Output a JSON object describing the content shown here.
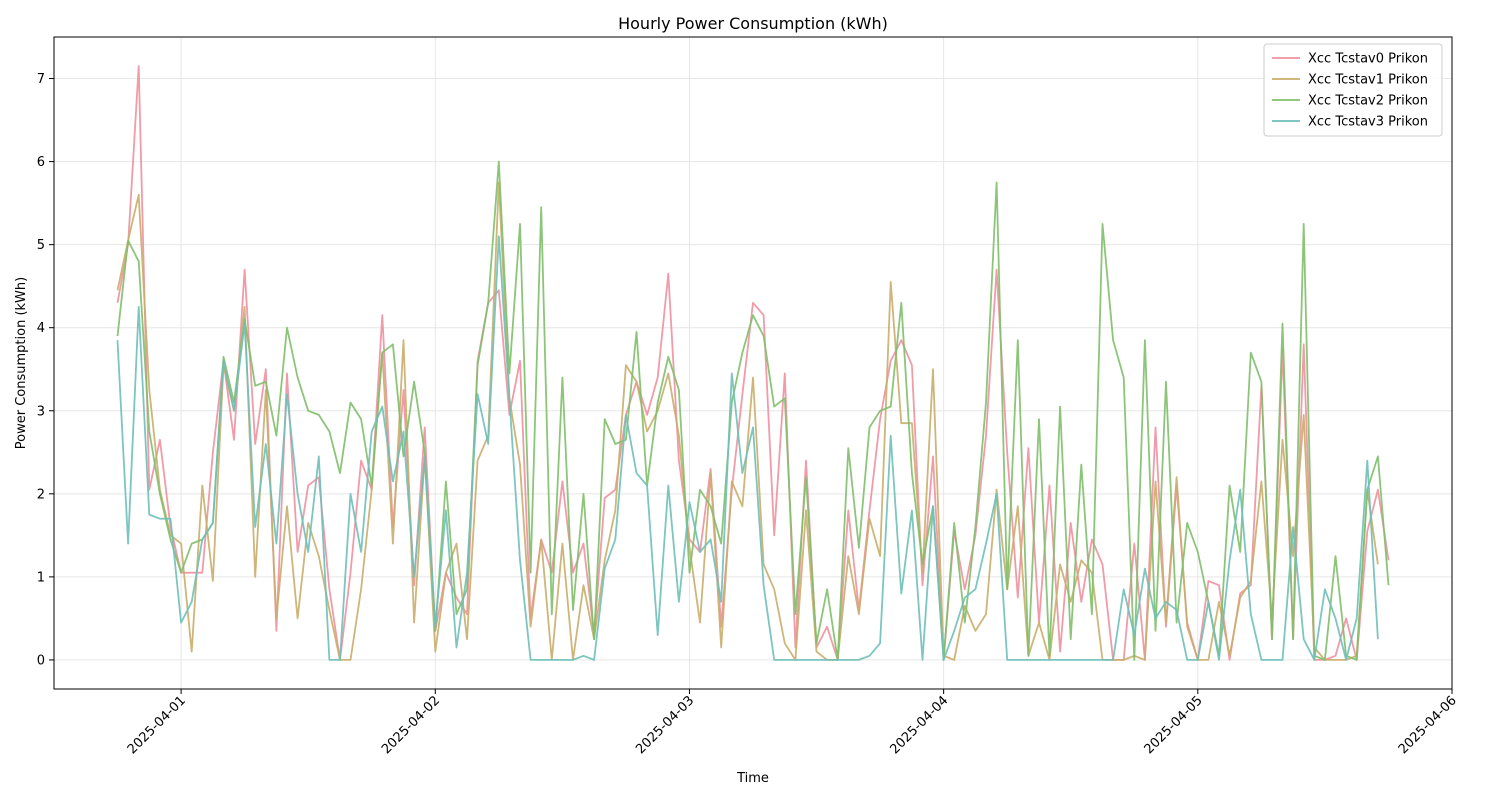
{
  "chart_data": {
    "type": "line",
    "title": "Hourly Power Consumption (kWh)",
    "xlabel": "Time",
    "ylabel": "Power Consumption (kWh)",
    "x_start": "2025-03-31 18:00",
    "x_step_hours": 1,
    "xlim": [
      "2025-03-31 12:00",
      "2025-04-06 00:00"
    ],
    "ylim": [
      -0.35,
      7.5
    ],
    "x_ticks": [
      "2025-04-01",
      "2025-04-02",
      "2025-04-03",
      "2025-04-04",
      "2025-04-05",
      "2025-04-06"
    ],
    "y_ticks": [
      0,
      1,
      2,
      3,
      4,
      5,
      6,
      7
    ],
    "grid": true,
    "legend_position": "top-right",
    "series": [
      {
        "name": "Xcc Tcstav0 Prikon",
        "color": "#f0909f",
        "values": [
          4.3,
          5.0,
          7.15,
          2.05,
          2.65,
          1.6,
          1.05,
          1.05,
          1.05,
          2.5,
          3.6,
          2.65,
          4.7,
          2.6,
          3.5,
          0.35,
          3.45,
          1.3,
          2.1,
          2.2,
          0.85,
          0.0,
          1.05,
          2.4,
          2.05,
          4.15,
          1.6,
          3.25,
          0.9,
          2.8,
          0.35,
          1.05,
          0.75,
          0.55,
          3.6,
          4.3,
          4.45,
          2.95,
          3.6,
          0.5,
          1.45,
          1.05,
          2.15,
          1.05,
          1.4,
          0.3,
          1.95,
          2.05,
          2.95,
          3.35,
          2.95,
          3.4,
          4.65,
          2.4,
          1.45,
          1.3,
          2.3,
          0.4,
          2.05,
          3.2,
          4.3,
          4.15,
          1.5,
          3.45,
          0.15,
          2.4,
          0.15,
          0.4,
          0.0,
          1.8,
          0.6,
          1.8,
          2.9,
          3.6,
          3.85,
          3.55,
          0.9,
          2.45,
          0.0,
          1.55,
          0.85,
          1.5,
          2.7,
          4.7,
          2.5,
          0.75,
          2.55,
          0.45,
          2.1,
          0.1,
          1.65,
          0.7,
          1.45,
          1.15,
          0.0,
          0.0,
          1.4,
          0.0,
          2.8,
          0.4,
          2.1,
          0.45,
          0.0,
          0.95,
          0.9,
          0.0,
          0.8,
          0.9,
          3.3,
          0.25,
          3.75,
          0.25,
          3.8,
          0.0,
          0.0,
          0.05,
          0.5,
          0.0,
          1.55,
          2.05,
          1.2
        ]
      },
      {
        "name": "Xcc Tcstav1 Prikon",
        "color": "#c9ad6a",
        "values": [
          4.45,
          5.05,
          5.6,
          3.25,
          2.05,
          1.5,
          1.4,
          0.1,
          2.1,
          0.95,
          3.55,
          3.0,
          4.25,
          1.0,
          3.25,
          0.5,
          1.85,
          0.5,
          1.65,
          1.25,
          0.6,
          0.0,
          0.0,
          0.85,
          2.05,
          3.7,
          1.4,
          3.85,
          0.45,
          2.45,
          0.1,
          1.05,
          1.4,
          0.25,
          2.4,
          2.7,
          5.75,
          3.15,
          2.35,
          0.4,
          1.45,
          0.0,
          1.4,
          0.0,
          0.9,
          0.25,
          1.2,
          1.8,
          3.55,
          3.35,
          2.75,
          3.0,
          3.45,
          2.7,
          1.35,
          0.45,
          2.25,
          0.15,
          2.15,
          1.85,
          3.4,
          1.15,
          0.85,
          0.2,
          0.0,
          1.8,
          0.1,
          0.0,
          0.0,
          1.25,
          0.55,
          1.7,
          1.25,
          4.55,
          2.85,
          2.85,
          1.05,
          3.5,
          0.05,
          0.0,
          0.65,
          0.35,
          0.55,
          2.05,
          0.85,
          1.85,
          0.05,
          0.45,
          0.0,
          1.15,
          0.7,
          1.2,
          1.05,
          0.0,
          0.0,
          0.0,
          0.05,
          0.0,
          2.15,
          0.45,
          2.2,
          0.4,
          0.0,
          0.0,
          0.7,
          0.05,
          0.75,
          0.95,
          2.15,
          0.5,
          2.65,
          1.25,
          2.95,
          0.15,
          0.0,
          0.0,
          0.0,
          0.05,
          2.05,
          1.15
        ]
      },
      {
        "name": "Xcc Tcstav2 Prikon",
        "color": "#7fbf6a",
        "values": [
          3.9,
          5.05,
          4.8,
          2.75,
          2.0,
          1.45,
          1.05,
          1.4,
          1.45,
          1.65,
          3.65,
          3.1,
          4.1,
          3.3,
          3.35,
          2.7,
          4.0,
          3.4,
          3.0,
          2.95,
          2.75,
          2.25,
          3.1,
          2.9,
          2.1,
          3.7,
          3.8,
          2.45,
          3.35,
          2.5,
          0.35,
          2.15,
          0.55,
          0.85,
          3.55,
          4.3,
          6.0,
          3.45,
          5.25,
          1.05,
          5.45,
          0.55,
          3.4,
          0.6,
          2.0,
          0.25,
          2.9,
          2.6,
          2.65,
          3.95,
          2.1,
          3.1,
          3.65,
          3.25,
          1.05,
          2.05,
          1.85,
          1.4,
          3.1,
          3.7,
          4.15,
          3.9,
          3.05,
          3.15,
          0.55,
          2.2,
          0.2,
          0.85,
          0.0,
          2.55,
          1.35,
          2.8,
          3.0,
          3.05,
          4.3,
          2.25,
          1.15,
          1.85,
          0.0,
          1.65,
          0.45,
          1.6,
          3.1,
          5.75,
          0.85,
          3.85,
          0.05,
          2.9,
          0.05,
          3.05,
          0.25,
          2.35,
          0.55,
          5.25,
          3.85,
          3.4,
          0.0,
          3.85,
          0.35,
          3.35,
          0.45,
          1.65,
          1.3,
          0.7,
          0.05,
          2.1,
          1.3,
          3.7,
          3.35,
          0.25,
          4.05,
          0.25,
          5.25,
          0.05,
          0.0,
          1.25,
          0.05,
          0.0,
          2.05,
          2.45,
          0.9
        ]
      },
      {
        "name": "Xcc Tcstav3 Prikon",
        "color": "#6fbfb8",
        "values": [
          3.85,
          1.4,
          4.25,
          1.75,
          1.7,
          1.7,
          0.45,
          0.7,
          1.45,
          1.65,
          3.6,
          3.0,
          4.05,
          1.6,
          2.6,
          1.4,
          3.2,
          2.0,
          1.3,
          2.45,
          0.0,
          0.0,
          2.0,
          1.3,
          2.75,
          3.05,
          2.15,
          2.75,
          1.0,
          2.45,
          0.4,
          1.8,
          0.15,
          1.05,
          3.2,
          2.6,
          5.1,
          3.15,
          1.2,
          0.0,
          0.0,
          0.0,
          0.0,
          0.0,
          0.05,
          0.0,
          1.1,
          1.45,
          2.95,
          2.25,
          2.1,
          0.3,
          2.1,
          0.7,
          1.9,
          1.3,
          1.45,
          0.7,
          3.45,
          2.25,
          2.8,
          0.9,
          0.0,
          0.0,
          0.0,
          0.0,
          0.0,
          0.0,
          0.0,
          0.0,
          0.0,
          0.05,
          0.2,
          2.7,
          0.8,
          1.8,
          0.0,
          1.85,
          0.0,
          0.35,
          0.75,
          0.85,
          1.4,
          2.0,
          0.0,
          0.0,
          0.0,
          0.0,
          0.0,
          0.0,
          0.0,
          0.0,
          0.0,
          0.0,
          0.0,
          0.85,
          0.3,
          1.1,
          0.5,
          0.7,
          0.6,
          0.0,
          0.0,
          0.7,
          0.0,
          1.2,
          2.05,
          0.55,
          0.0,
          0.0,
          0.0,
          1.6,
          0.25,
          0.0,
          0.85,
          0.5,
          0.0,
          0.5,
          2.4,
          0.25
        ]
      }
    ]
  }
}
